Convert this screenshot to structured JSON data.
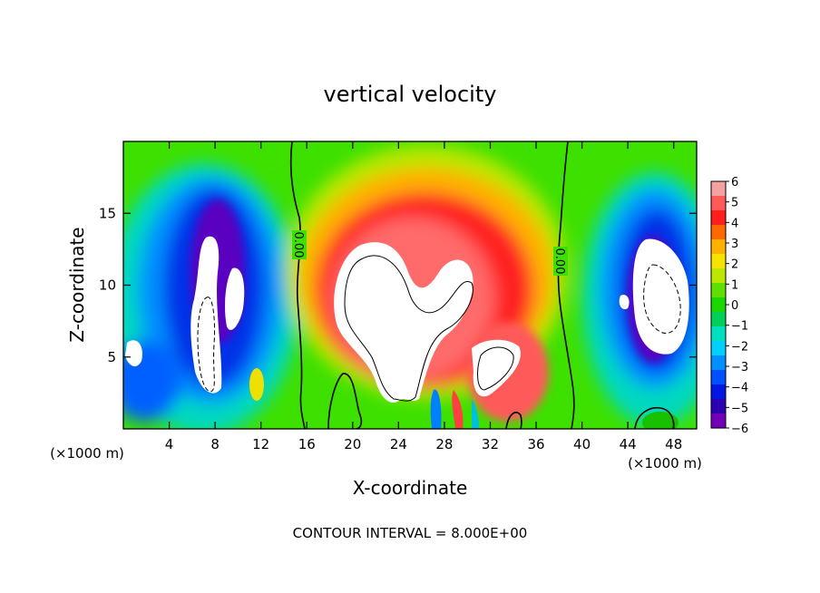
{
  "chart_data": {
    "type": "heatmap",
    "title": "vertical velocity",
    "xlabel": "X-coordinate",
    "ylabel": "Z-coordinate",
    "x_unit_left": "(×1000 m)",
    "x_unit_right": "(×1000 m)",
    "xlim": [
      0,
      50
    ],
    "ylim": [
      0,
      20
    ],
    "x_ticks": [
      4,
      8,
      12,
      16,
      20,
      24,
      28,
      32,
      36,
      40,
      44,
      48
    ],
    "y_ticks": [
      5,
      10,
      15
    ],
    "colorbar": {
      "ticks": [
        "6",
        "5",
        "4",
        "3",
        "2",
        "1",
        "0",
        "−1",
        "−2",
        "−3",
        "−4",
        "−5",
        "−6"
      ],
      "range": [
        -6,
        6
      ],
      "colors": [
        "#f5a0a0",
        "#ff5a5a",
        "#ff1e1e",
        "#ff6a00",
        "#ffb000",
        "#f6e400",
        "#bce800",
        "#60e000",
        "#18d800",
        "#00cf5a",
        "#00e0c0",
        "#00cfff",
        "#0090ff",
        "#0050ff",
        "#0018e0",
        "#2a00b0",
        "#7200b8"
      ],
      "over_color": "#ffffff"
    },
    "contour_labels": [
      "0.00",
      "0.00"
    ],
    "note": "CONTOUR INTERVAL = 8.000E+00"
  }
}
